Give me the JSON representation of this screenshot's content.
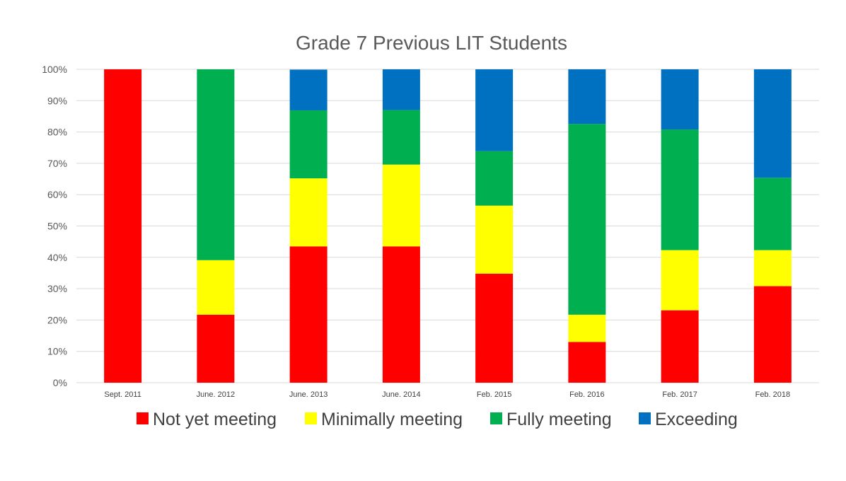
{
  "chart_data": {
    "type": "bar",
    "stacked": true,
    "percent": true,
    "title": "Grade 7 Previous LIT Students",
    "xlabel": "",
    "ylabel": "",
    "ylim": [
      0,
      100
    ],
    "y_ticks": [
      "0%",
      "10%",
      "20%",
      "30%",
      "40%",
      "50%",
      "60%",
      "70%",
      "80%",
      "90%",
      "100%"
    ],
    "categories": [
      "Sept. 2011",
      "June. 2012",
      "June. 2013",
      "June. 2014",
      "Feb. 2015",
      "Feb. 2016",
      "Feb. 2017",
      "Feb. 2018"
    ],
    "series": [
      {
        "name": "Not yet meeting",
        "color": "#ff0000",
        "values": [
          100,
          21.7,
          43.5,
          43.5,
          34.8,
          13.0,
          23.1,
          30.8
        ]
      },
      {
        "name": "Minimally meeting",
        "color": "#ffff00",
        "values": [
          0,
          17.4,
          21.7,
          26.1,
          21.7,
          8.7,
          19.2,
          11.5
        ]
      },
      {
        "name": "Fully meeting",
        "color": "#00b050",
        "values": [
          0,
          60.9,
          21.7,
          17.4,
          17.4,
          60.9,
          38.5,
          23.1
        ]
      },
      {
        "name": "Exceeding",
        "color": "#0070c0",
        "values": [
          0,
          0,
          13.0,
          13.0,
          26.1,
          17.4,
          19.2,
          34.6
        ]
      }
    ],
    "grid": true,
    "legend_position": "bottom"
  }
}
